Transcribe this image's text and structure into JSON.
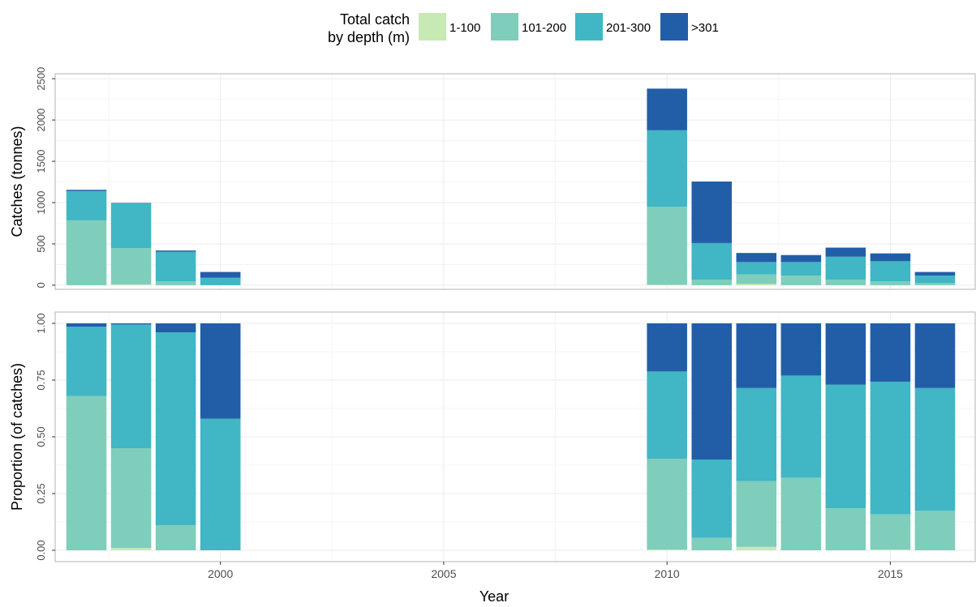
{
  "legend": {
    "title_line1": "Total catch",
    "title_line2": "by depth (m)",
    "items": [
      {
        "label": "1-100",
        "color": "#c7e9b4"
      },
      {
        "label": "101-200",
        "color": "#7fcdbb"
      },
      {
        "label": "201-300",
        "color": "#41b6c4"
      },
      {
        "label": ">301",
        "color": "#225ea8"
      }
    ],
    "placement": "top"
  },
  "chart_data": [
    {
      "type": "bar",
      "stacked": true,
      "ylabel": "Catches (tonnes)",
      "xlabel": "",
      "xlim": [
        1996.3,
        2016.9
      ],
      "ylim": [
        -50,
        2560
      ],
      "yticks": [
        0,
        500,
        1000,
        1500,
        2000,
        2500
      ],
      "ytick_labels": [
        "0",
        "500",
        "1000",
        "1500",
        "2000",
        "2500"
      ],
      "xticks": [
        2000,
        2005,
        2010,
        2015
      ],
      "grid": true,
      "x": [
        1997,
        1998,
        1999,
        2000,
        2010,
        2011,
        2012,
        2013,
        2014,
        2015,
        2016
      ],
      "series": [
        {
          "name": "1-100",
          "values": [
            0,
            10,
            0,
            0,
            5,
            0,
            15,
            0,
            0,
            0,
            0
          ]
        },
        {
          "name": "101-200",
          "values": [
            785,
            440,
            45,
            0,
            945,
            65,
            115,
            115,
            65,
            45,
            25
          ]
        },
        {
          "name": "201-300",
          "values": [
            355,
            540,
            360,
            90,
            925,
            445,
            150,
            165,
            280,
            245,
            90
          ]
        },
        {
          "name": ">301",
          "values": [
            15,
            5,
            15,
            70,
            505,
            745,
            110,
            85,
            110,
            95,
            45
          ]
        }
      ]
    },
    {
      "type": "bar",
      "stacked": true,
      "ylabel": "Proportion (of catches)",
      "xlabel": "Year",
      "xlim": [
        1996.3,
        2016.9
      ],
      "ylim": [
        -0.05,
        1.05
      ],
      "yticks": [
        0,
        0.25,
        0.5,
        0.75,
        1
      ],
      "ytick_labels": [
        "0.00",
        "0.25",
        "0.50",
        "0.75",
        "1.00"
      ],
      "xticks": [
        2000,
        2005,
        2010,
        2015
      ],
      "xtick_labels": [
        "2000",
        "2005",
        "2010",
        "2015"
      ],
      "grid": true,
      "x": [
        1997,
        1998,
        1999,
        2000,
        2010,
        2011,
        2012,
        2013,
        2014,
        2015,
        2016
      ],
      "series": [
        {
          "name": "1-100",
          "values": [
            0,
            0.01,
            0,
            0,
            0.003,
            0,
            0.015,
            0,
            0,
            0.003,
            0
          ]
        },
        {
          "name": "101-200",
          "values": [
            0.68,
            0.44,
            0.11,
            0,
            0.4,
            0.055,
            0.29,
            0.32,
            0.185,
            0.155,
            0.175
          ]
        },
        {
          "name": "201-300",
          "values": [
            0.305,
            0.545,
            0.85,
            0.58,
            0.385,
            0.345,
            0.41,
            0.45,
            0.545,
            0.585,
            0.54
          ]
        },
        {
          "name": ">301",
          "values": [
            0.015,
            0.005,
            0.04,
            0.42,
            0.212,
            0.6,
            0.285,
            0.23,
            0.27,
            0.257,
            0.285
          ]
        }
      ]
    }
  ]
}
